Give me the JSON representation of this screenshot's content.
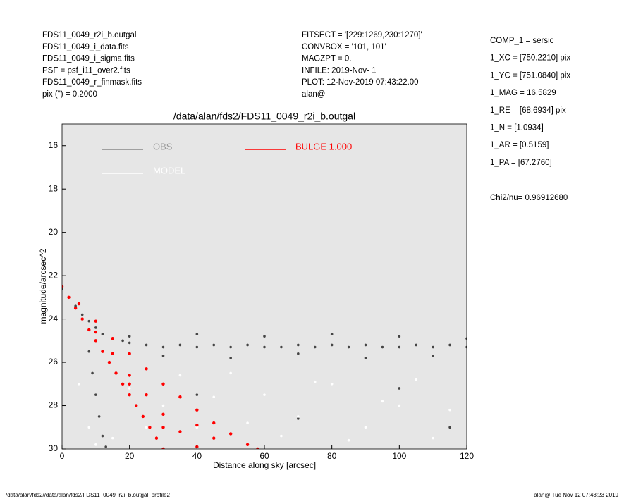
{
  "header": {
    "left": [
      "FDS11_0049_r2i_b.outgal",
      "FDS11_0049_i_data.fits",
      "FDS11_0049_i_sigma.fits",
      "PSF     = psf_i11_over2.fits",
      "FDS11_0049_r_finmask.fits",
      "pix (\") =  0.2000"
    ],
    "middle": [
      "FITSECT = '[229:1269,230:1270]'",
      "CONVBOX = '101, 101'",
      "MAGZPT  =              0.",
      "INFILE: 2019-Nov- 1",
      "PLOT: 12-Nov-2019 07:43:22.00",
      "alan@"
    ],
    "right": [
      "COMP_1  = sersic",
      "1_XC    = [750.2210] pix",
      "1_YC    = [751.0840] pix",
      "1_MAG   = 16.5829",
      "1_RE    = [68.6934] pix",
      "1_N     = [1.0934]",
      "1_AR    = [0.5159]",
      "1_PA    = [67.2760]"
    ],
    "chi": "Chi2/nu=     0.96912680"
  },
  "footer": {
    "left": "/data/alan/fds2//data/alan/fds2/FDS11_0049_r2i_b.outgal_profile2",
    "right": "alan@  Tue Nov 12 07:43:23 2019"
  },
  "chart_data": {
    "type": "scatter",
    "title": "/data/alan/fds2/FDS11_0049_r2i_b.outgal",
    "x_label": "Distance along sky [arcsec]",
    "y_label": "magnitude/arcsec^2",
    "xlim": [
      0,
      120
    ],
    "ylim": [
      30,
      15
    ],
    "xticks": [
      0,
      20,
      40,
      60,
      80,
      100,
      120
    ],
    "yticks": [
      16,
      18,
      20,
      22,
      24,
      26,
      28,
      30
    ],
    "background": "#e6e6e6",
    "series": [
      {
        "name": "OBS",
        "color": "#454545",
        "x": [
          0,
          2,
          4,
          6,
          8,
          10,
          12,
          15,
          18,
          20,
          25,
          30,
          35,
          40,
          45,
          50,
          55,
          60,
          65,
          70,
          75,
          80,
          85,
          90,
          95,
          100,
          105,
          110,
          115,
          120,
          20,
          30,
          40,
          50,
          60,
          70,
          80,
          90,
          100,
          110,
          120,
          8,
          9,
          10,
          11,
          12,
          13,
          40,
          70,
          100,
          115
        ],
        "values": [
          22.6,
          23.0,
          23.4,
          23.8,
          24.1,
          24.4,
          24.7,
          24.9,
          25.0,
          25.1,
          25.2,
          25.3,
          25.2,
          25.3,
          25.2,
          25.3,
          25.2,
          25.3,
          25.3,
          25.2,
          25.3,
          25.2,
          25.3,
          25.2,
          25.3,
          25.3,
          25.2,
          25.3,
          25.2,
          25.3,
          24.8,
          25.7,
          24.7,
          25.8,
          24.8,
          25.6,
          24.7,
          25.8,
          24.8,
          25.7,
          24.9,
          25.5,
          26.5,
          27.5,
          28.5,
          29.4,
          29.9,
          27.5,
          28.6,
          27.2,
          29.0
        ]
      },
      {
        "name": "MODEL",
        "color": "#ffffff",
        "x": [
          5,
          8,
          10,
          15,
          20,
          25,
          30,
          35,
          40,
          45,
          50,
          55,
          60,
          65,
          70,
          75,
          80,
          85,
          90,
          95,
          100,
          105,
          110,
          115
        ],
        "values": [
          27.0,
          29.0,
          29.8,
          29.5,
          27.2,
          29.0,
          28.0,
          26.6,
          29.0,
          27.6,
          26.5,
          28.8,
          27.5,
          29.4,
          28.5,
          26.9,
          27.0,
          29.6,
          29.0,
          27.8,
          28.0,
          26.8,
          29.5,
          28.2
        ]
      },
      {
        "name": "BULGE  1.000",
        "color": "#ff0000",
        "x": [
          0,
          2,
          4,
          6,
          8,
          10,
          12,
          14,
          16,
          18,
          20,
          22,
          24,
          26,
          28,
          30,
          5,
          10,
          15,
          20,
          25,
          30,
          35,
          40,
          45,
          50,
          55,
          58,
          10,
          15,
          20,
          25,
          30,
          35,
          40,
          45,
          20,
          30,
          40
        ],
        "values": [
          22.5,
          23.0,
          23.5,
          24.0,
          24.5,
          25.0,
          25.5,
          26.0,
          26.5,
          27.0,
          27.5,
          28.0,
          28.5,
          29.0,
          29.5,
          30.0,
          23.3,
          24.1,
          24.9,
          25.6,
          26.3,
          27.0,
          27.6,
          28.2,
          28.8,
          29.3,
          29.8,
          30.0,
          24.6,
          25.6,
          26.6,
          27.5,
          28.4,
          29.2,
          29.9,
          29.5,
          27.0,
          29.0,
          28.9
        ]
      }
    ]
  }
}
